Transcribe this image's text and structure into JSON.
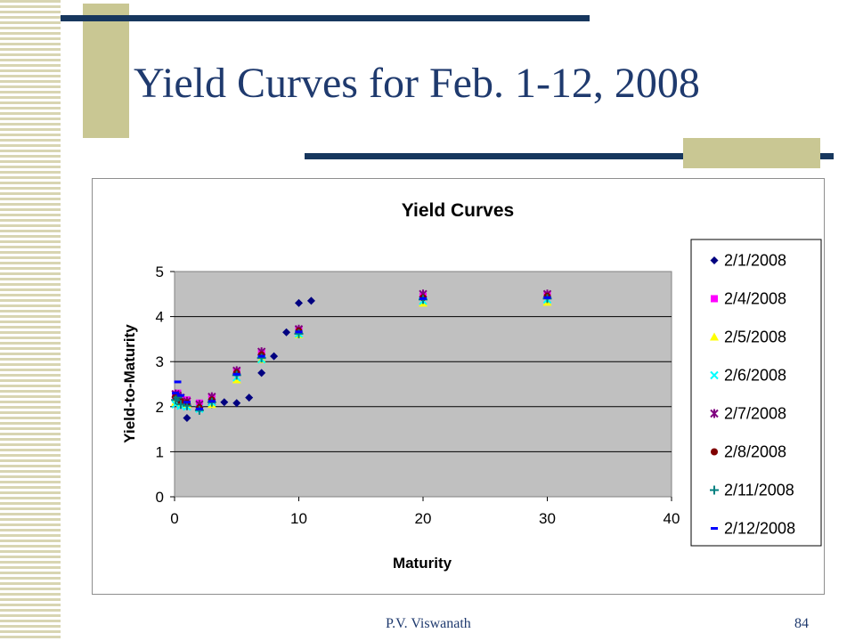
{
  "slide": {
    "title": "Yield Curves for Feb. 1-12, 2008",
    "author": "P.V. Viswanath",
    "page_number": "84"
  },
  "colors": {
    "navy": "#17375e",
    "tan": "#c9c793",
    "plot_bg": "#c0c0c0"
  },
  "chart_data": {
    "type": "scatter",
    "title": "Yield Curves",
    "xlabel": "Maturity",
    "ylabel": "Yield-to-Maturity",
    "xlim": [
      0,
      40
    ],
    "ylim": [
      0,
      5
    ],
    "xticks": [
      0,
      10,
      20,
      30,
      40
    ],
    "yticks": [
      0,
      1,
      2,
      3,
      4,
      5
    ],
    "grid": "horizontal",
    "legend_position": "right",
    "series": [
      {
        "name": "2/1/2008",
        "marker": "diamond",
        "color": "#000080",
        "points": [
          [
            0.08,
            2.2
          ],
          [
            0.25,
            2.23
          ],
          [
            0.5,
            2.1
          ],
          [
            1,
            1.75
          ],
          [
            2,
            1.95
          ],
          [
            3,
            2.05
          ],
          [
            4,
            2.1
          ],
          [
            5,
            2.08
          ],
          [
            6,
            2.2
          ],
          [
            7,
            2.75
          ],
          [
            8,
            3.12
          ],
          [
            9,
            3.65
          ],
          [
            10,
            4.3
          ],
          [
            11,
            4.35
          ]
        ]
      },
      {
        "name": "2/4/2008",
        "marker": "square",
        "color": "#ff00ff",
        "points": [
          [
            0.08,
            2.25
          ],
          [
            0.25,
            2.3
          ],
          [
            0.5,
            2.2
          ],
          [
            1,
            2.15
          ],
          [
            2,
            2.08
          ],
          [
            3,
            2.2
          ],
          [
            5,
            2.78
          ],
          [
            7,
            3.18
          ],
          [
            10,
            3.7
          ],
          [
            20,
            4.45
          ],
          [
            30,
            4.48
          ]
        ]
      },
      {
        "name": "2/5/2008",
        "marker": "triangle",
        "color": "#ffff00",
        "points": [
          [
            0.08,
            2.1
          ],
          [
            0.25,
            2.15
          ],
          [
            0.5,
            2.08
          ],
          [
            1,
            2.05
          ],
          [
            2,
            1.98
          ],
          [
            3,
            2.05
          ],
          [
            5,
            2.6
          ],
          [
            7,
            3.05
          ],
          [
            10,
            3.6
          ],
          [
            20,
            4.3
          ],
          [
            30,
            4.32
          ]
        ]
      },
      {
        "name": "2/6/2008",
        "marker": "x",
        "color": "#00ffff",
        "points": [
          [
            0.08,
            2.05
          ],
          [
            0.25,
            2.12
          ],
          [
            0.5,
            2.02
          ],
          [
            1,
            2.0
          ],
          [
            2,
            1.95
          ],
          [
            3,
            2.1
          ],
          [
            5,
            2.65
          ],
          [
            7,
            3.05
          ],
          [
            10,
            3.62
          ],
          [
            20,
            4.35
          ],
          [
            30,
            4.38
          ]
        ]
      },
      {
        "name": "2/7/2008",
        "marker": "star",
        "color": "#800080",
        "points": [
          [
            0.08,
            2.28
          ],
          [
            0.25,
            2.25
          ],
          [
            0.5,
            2.2
          ],
          [
            1,
            2.12
          ],
          [
            2,
            2.05
          ],
          [
            3,
            2.22
          ],
          [
            5,
            2.8
          ],
          [
            7,
            3.22
          ],
          [
            10,
            3.72
          ],
          [
            20,
            4.5
          ],
          [
            30,
            4.5
          ]
        ]
      },
      {
        "name": "2/8/2008",
        "marker": "circle",
        "color": "#800000",
        "points": [
          [
            0.08,
            2.22
          ],
          [
            0.25,
            2.18
          ],
          [
            0.5,
            2.12
          ],
          [
            1,
            2.08
          ],
          [
            2,
            1.98
          ],
          [
            3,
            2.15
          ],
          [
            5,
            2.75
          ],
          [
            7,
            3.15
          ],
          [
            10,
            3.68
          ],
          [
            20,
            4.42
          ],
          [
            30,
            4.45
          ]
        ]
      },
      {
        "name": "2/11/2008",
        "marker": "plus",
        "color": "#008080",
        "points": [
          [
            0.08,
            2.15
          ],
          [
            0.25,
            2.2
          ],
          [
            0.5,
            2.05
          ],
          [
            1,
            2.02
          ],
          [
            2,
            1.92
          ],
          [
            3,
            2.1
          ],
          [
            5,
            2.7
          ],
          [
            7,
            3.08
          ],
          [
            10,
            3.62
          ],
          [
            20,
            4.38
          ],
          [
            30,
            4.4
          ]
        ]
      },
      {
        "name": "2/12/2008",
        "marker": "dash",
        "color": "#0000ff",
        "points": [
          [
            0.08,
            2.3
          ],
          [
            0.25,
            2.55
          ],
          [
            0.5,
            2.25
          ],
          [
            1,
            2.1
          ],
          [
            2,
            1.95
          ],
          [
            3,
            2.12
          ],
          [
            5,
            2.72
          ],
          [
            7,
            3.12
          ],
          [
            10,
            3.66
          ],
          [
            20,
            4.4
          ],
          [
            30,
            4.42
          ]
        ]
      }
    ]
  }
}
